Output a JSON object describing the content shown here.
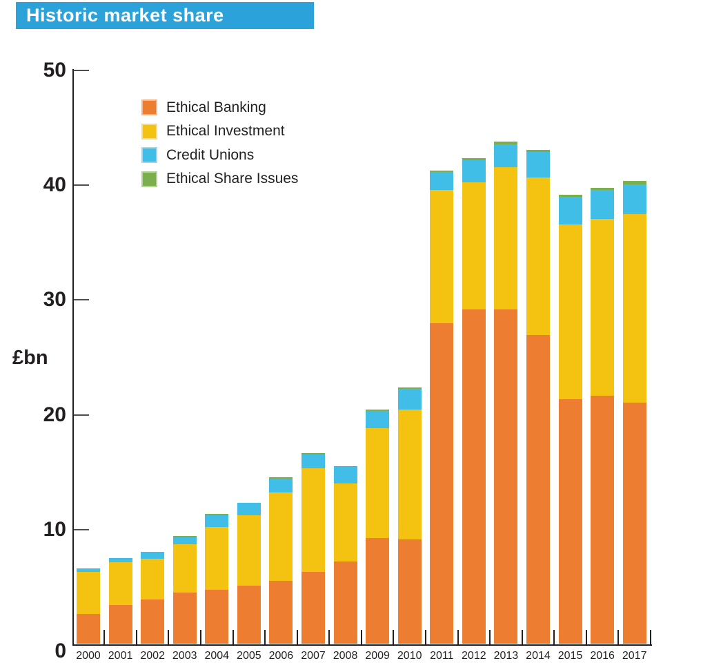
{
  "banner": {
    "title": "Historic market share"
  },
  "ylabel": "£bn",
  "colors": {
    "banner": "#2BA3DA",
    "axis": "#231F20",
    "tick_gray": "#4D4D4D",
    "text": "#231F20",
    "ethical_banking": "#ED7E31",
    "ethical_investment": "#F4C312",
    "credit_unions": "#41BEE8",
    "ethical_share_issues": "#7BAF4C"
  },
  "axis": {
    "y_ticks": [
      0,
      10,
      20,
      30,
      40,
      50
    ]
  },
  "chart_data": {
    "type": "bar",
    "stacked": true,
    "title": "Historic market share",
    "ylabel": "£bn",
    "ylim": [
      0,
      50
    ],
    "grid": false,
    "legend_position": "upper-left-inside",
    "categories": [
      "2000",
      "2001",
      "2002",
      "2003",
      "2004",
      "2005",
      "2006",
      "2007",
      "2008",
      "2009",
      "2010",
      "2011",
      "2012",
      "2013",
      "2014",
      "2015",
      "2016",
      "2017"
    ],
    "series": [
      {
        "name": "Ethical Banking",
        "color": "#ED7E31",
        "values": [
          2.6,
          3.4,
          3.9,
          4.5,
          4.7,
          5.1,
          5.5,
          6.3,
          7.2,
          9.2,
          9.1,
          27.9,
          29.1,
          29.1,
          26.9,
          21.3,
          21.6,
          21.0
        ]
      },
      {
        "name": "Ethical Investment",
        "color": "#F4C312",
        "values": [
          3.7,
          3.7,
          3.5,
          4.2,
          5.5,
          6.1,
          7.7,
          9.0,
          6.8,
          9.6,
          11.3,
          11.6,
          11.1,
          12.4,
          13.7,
          15.2,
          15.4,
          16.4
        ]
      },
      {
        "name": "Credit Unions",
        "color": "#41BEE8",
        "values": [
          0.3,
          0.4,
          0.6,
          0.6,
          1.0,
          1.1,
          1.2,
          1.2,
          1.4,
          1.5,
          1.8,
          1.6,
          1.9,
          2.0,
          2.2,
          2.4,
          2.5,
          2.6
        ]
      },
      {
        "name": "Ethical Share Issues",
        "color": "#7BAF4C",
        "values": [
          0,
          0,
          0,
          0.1,
          0.1,
          0,
          0.1,
          0.1,
          0.1,
          0.1,
          0.1,
          0.1,
          0.2,
          0.2,
          0.2,
          0.2,
          0.2,
          0.3
        ]
      }
    ]
  }
}
